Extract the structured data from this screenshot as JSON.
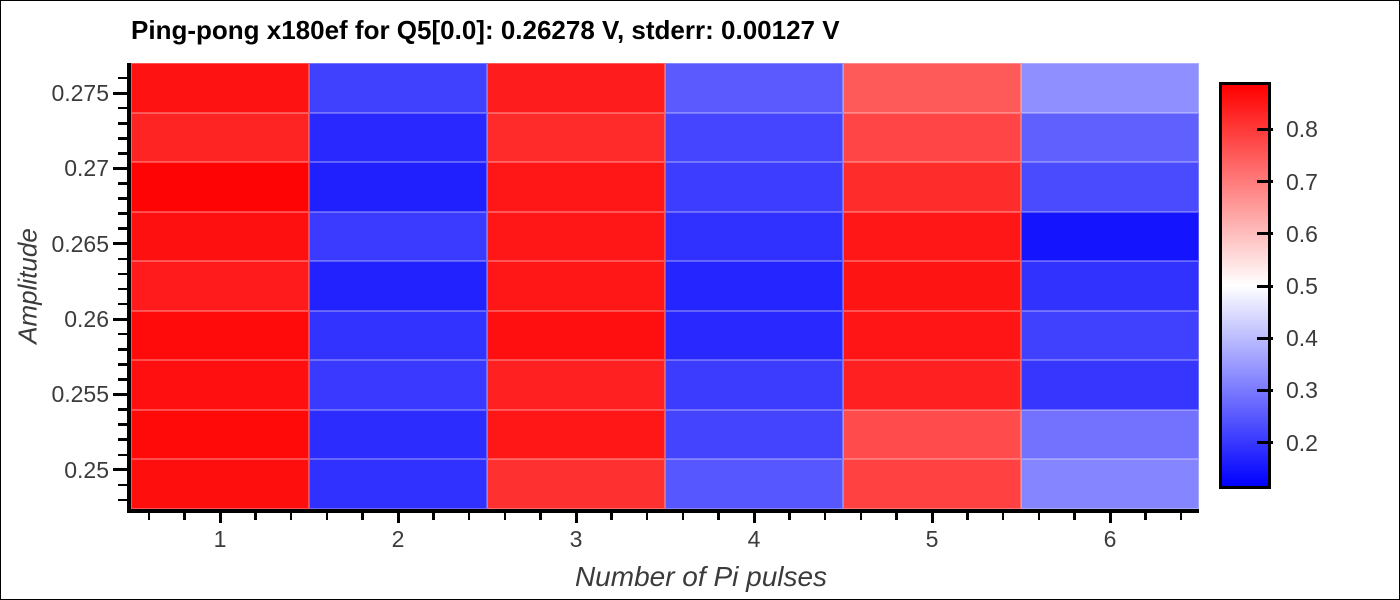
{
  "figure": {
    "title": "Ping-pong x180ef for Q5[0.0]: 0.26278 V, stderr: 0.00127 V",
    "x_axis_label": "Number of Pi pulses",
    "y_axis_label": "Amplitude"
  },
  "chart_data": {
    "type": "heatmap",
    "title": "Ping-pong x180ef for Q5[0.0]: 0.26278 V, stderr: 0.00127 V",
    "xlabel": "Number of Pi pulses",
    "ylabel": "Amplitude",
    "x": [
      1,
      2,
      3,
      4,
      5,
      6
    ],
    "x_tick_labels": [
      "1",
      "2",
      "3",
      "4",
      "5",
      "6"
    ],
    "y_rows_top_to_bottom": [
      0.2753,
      0.272,
      0.2687,
      0.2653,
      0.262,
      0.2587,
      0.2553,
      0.252,
      0.2487
    ],
    "y_ticks": [
      {
        "value": 0.275,
        "label": "0.275"
      },
      {
        "value": 0.27,
        "label": "0.27"
      },
      {
        "value": 0.265,
        "label": "0.265"
      },
      {
        "value": 0.26,
        "label": "0.26"
      },
      {
        "value": 0.255,
        "label": "0.255"
      },
      {
        "value": 0.25,
        "label": "0.25"
      }
    ],
    "values_rows_top_to_bottom": [
      [
        0.864,
        0.209,
        0.848,
        0.249,
        0.754,
        0.33
      ],
      [
        0.836,
        0.174,
        0.827,
        0.216,
        0.786,
        0.258
      ],
      [
        0.885,
        0.16,
        0.856,
        0.204,
        0.824,
        0.224
      ],
      [
        0.867,
        0.201,
        0.856,
        0.184,
        0.856,
        0.142
      ],
      [
        0.85,
        0.163,
        0.858,
        0.168,
        0.861,
        0.187
      ],
      [
        0.874,
        0.189,
        0.868,
        0.172,
        0.859,
        0.209
      ],
      [
        0.868,
        0.198,
        0.841,
        0.203,
        0.841,
        0.194
      ],
      [
        0.877,
        0.178,
        0.857,
        0.215,
        0.776,
        0.285
      ],
      [
        0.87,
        0.184,
        0.818,
        0.244,
        0.792,
        0.314
      ]
    ],
    "xlim": [
      0.5,
      6.5
    ],
    "ylim": [
      0.2474,
      0.277
    ],
    "x_minor_tick_step": 0.2,
    "y_minor_tick_step": 0.001,
    "colormap": "bwr (blue-white-red)",
    "vmin": 0.111,
    "vmax": 0.891,
    "colorbar_ticks": [
      {
        "value": 0.8,
        "label": "0.8"
      },
      {
        "value": 0.7,
        "label": "0.7"
      },
      {
        "value": 0.6,
        "label": "0.6"
      },
      {
        "value": 0.5,
        "label": "0.5"
      },
      {
        "value": 0.4,
        "label": "0.4"
      },
      {
        "value": 0.3,
        "label": "0.3"
      },
      {
        "value": 0.2,
        "label": "0.2"
      }
    ],
    "grid": false,
    "legend_position": "colorbar-right"
  },
  "colors": {
    "background": "#ffffff",
    "title_text": "#000000",
    "tick_label_text": "#3b3b3b",
    "axis_spine": "#000000",
    "colormap_low": "#0000ff",
    "colormap_mid": "#ffffff",
    "colormap_high": "#ff0000"
  }
}
